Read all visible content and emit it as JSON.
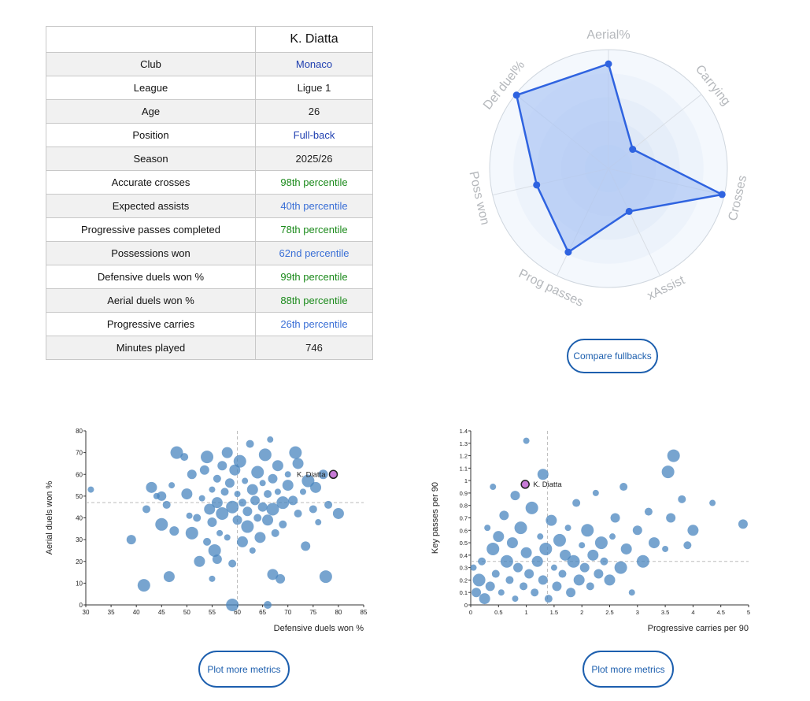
{
  "player": {
    "name": "K. Diatta"
  },
  "table_rows": [
    {
      "label": "Club",
      "value": "Monaco",
      "color": "#1f3fb0"
    },
    {
      "label": "League",
      "value": "Ligue 1",
      "color": "#222222"
    },
    {
      "label": "Age",
      "value": "26",
      "color": "#222222"
    },
    {
      "label": "Position",
      "value": "Full-back",
      "color": "#1f3fb0"
    },
    {
      "label": "Season",
      "value": "2025/26",
      "color": "#222222"
    },
    {
      "label": "Accurate crosses",
      "value": "98th percentile",
      "color": "#1b8a1b"
    },
    {
      "label": "Expected assists",
      "value": "40th percentile",
      "color": "#3a6fd6"
    },
    {
      "label": "Progressive passes completed",
      "value": "78th percentile",
      "color": "#1b8a1b"
    },
    {
      "label": "Possessions won",
      "value": "62nd percentile",
      "color": "#3a6fd6"
    },
    {
      "label": "Defensive duels won %",
      "value": "99th percentile",
      "color": "#1b8a1b"
    },
    {
      "label": "Aerial duels won %",
      "value": "88th percentile",
      "color": "#1b8a1b"
    },
    {
      "label": "Progressive carries",
      "value": "26th percentile",
      "color": "#3a6fd6"
    },
    {
      "label": "Minutes played",
      "value": "746",
      "color": "#222222"
    }
  ],
  "buttons": {
    "compare": "Compare fullbacks",
    "plot_more_1": "Plot more metrics",
    "plot_more_2": "Plot more metrics"
  },
  "chart_data": [
    {
      "type": "radar",
      "axes": [
        "Aerial%",
        "Carrying",
        "Crosses",
        "xAssist",
        "Prog passes",
        "Poss won",
        "Def duel%"
      ],
      "values": [
        88,
        26,
        98,
        40,
        78,
        62,
        99
      ],
      "range": [
        0,
        100
      ],
      "fill_color": "#a9c3f5",
      "line_color": "#2f63e0"
    },
    {
      "type": "scatter",
      "xlabel": "Defensive duels won %",
      "ylabel": "Aerial duels won %",
      "xlim": [
        30,
        85
      ],
      "ylim": [
        0,
        80
      ],
      "xticks": [
        30,
        35,
        40,
        45,
        50,
        55,
        60,
        65,
        70,
        75,
        80,
        85
      ],
      "yticks": [
        0,
        10,
        20,
        30,
        40,
        50,
        60,
        70,
        80
      ],
      "x_ref": 60,
      "y_ref": 47,
      "highlight": {
        "label": "K. Diatta",
        "x": 79,
        "y": 60
      },
      "point_color": "#4a86bf",
      "highlight_color": "#c77ad6",
      "points": [
        [
          31,
          53
        ],
        [
          39,
          30
        ],
        [
          41.5,
          9
        ],
        [
          42,
          44
        ],
        [
          43,
          54
        ],
        [
          44,
          50
        ],
        [
          45,
          50
        ],
        [
          45,
          37
        ],
        [
          46,
          46
        ],
        [
          46.5,
          13
        ],
        [
          47,
          55
        ],
        [
          47.5,
          34
        ],
        [
          48,
          70
        ],
        [
          49.5,
          68
        ],
        [
          50,
          51
        ],
        [
          50.5,
          41
        ],
        [
          51,
          60
        ],
        [
          51,
          33
        ],
        [
          52,
          40
        ],
        [
          52.5,
          20
        ],
        [
          53,
          49
        ],
        [
          53.5,
          62
        ],
        [
          54,
          68
        ],
        [
          54,
          29
        ],
        [
          54.5,
          44
        ],
        [
          55,
          53
        ],
        [
          55,
          38
        ],
        [
          55.5,
          25
        ],
        [
          56,
          58
        ],
        [
          56,
          47
        ],
        [
          56.5,
          33
        ],
        [
          57,
          64
        ],
        [
          57,
          42
        ],
        [
          57.5,
          52
        ],
        [
          58,
          70
        ],
        [
          58,
          31
        ],
        [
          58.5,
          56
        ],
        [
          59,
          45
        ],
        [
          59,
          19
        ],
        [
          59.5,
          62
        ],
        [
          60,
          51
        ],
        [
          60,
          39
        ],
        [
          60.5,
          66
        ],
        [
          61,
          47
        ],
        [
          61,
          29
        ],
        [
          61.5,
          57
        ],
        [
          62,
          43
        ],
        [
          62,
          36
        ],
        [
          62.5,
          74
        ],
        [
          63,
          53
        ],
        [
          63,
          25
        ],
        [
          63.5,
          48
        ],
        [
          64,
          61
        ],
        [
          64,
          40
        ],
        [
          64.5,
          31
        ],
        [
          65,
          56
        ],
        [
          65,
          45
        ],
        [
          65.5,
          69
        ],
        [
          66,
          51
        ],
        [
          66,
          39
        ],
        [
          66.5,
          76
        ],
        [
          67,
          58
        ],
        [
          67,
          44
        ],
        [
          67.5,
          33
        ],
        [
          68,
          64
        ],
        [
          68,
          52
        ],
        [
          68.5,
          12
        ],
        [
          69,
          47
        ],
        [
          69,
          37
        ],
        [
          70,
          55
        ],
        [
          70,
          60
        ],
        [
          71,
          48
        ],
        [
          71.5,
          70
        ],
        [
          72,
          42
        ],
        [
          72,
          65
        ],
        [
          73,
          52
        ],
        [
          73.5,
          27
        ],
        [
          74,
          57
        ],
        [
          75,
          44
        ],
        [
          75.5,
          54
        ],
        [
          76,
          38
        ],
        [
          77,
          60
        ],
        [
          77.5,
          13
        ],
        [
          78,
          46
        ],
        [
          80,
          42
        ],
        [
          55,
          12
        ],
        [
          56,
          21
        ],
        [
          59,
          0
        ],
        [
          66,
          0
        ],
        [
          67,
          14
        ]
      ]
    },
    {
      "type": "scatter",
      "xlabel": "Progressive carries per 90",
      "ylabel": "Key passes per 90",
      "xlim": [
        0,
        5
      ],
      "ylim": [
        0,
        1.4
      ],
      "xticks": [
        0.0,
        0.5,
        1.0,
        1.5,
        2.0,
        2.5,
        3.0,
        3.5,
        4.0,
        4.5,
        5.0
      ],
      "yticks": [
        0.0,
        0.1,
        0.2,
        0.3,
        0.4,
        0.5,
        0.6,
        0.7,
        0.8,
        0.9,
        1.0,
        1.1,
        1.2,
        1.3,
        1.4
      ],
      "x_ref": 1.38,
      "y_ref": 0.35,
      "highlight": {
        "label": "K. Diatta",
        "x": 0.98,
        "y": 0.97
      },
      "point_color": "#4a86bf",
      "highlight_color": "#c77ad6",
      "points": [
        [
          0.05,
          0.3
        ],
        [
          0.1,
          0.1
        ],
        [
          0.15,
          0.2
        ],
        [
          0.2,
          0.35
        ],
        [
          0.25,
          0.05
        ],
        [
          0.3,
          0.62
        ],
        [
          0.35,
          0.15
        ],
        [
          0.4,
          0.45
        ],
        [
          0.45,
          0.25
        ],
        [
          0.5,
          0.55
        ],
        [
          0.55,
          0.1
        ],
        [
          0.6,
          0.72
        ],
        [
          0.65,
          0.35
        ],
        [
          0.7,
          0.2
        ],
        [
          0.75,
          0.5
        ],
        [
          0.8,
          0.05
        ],
        [
          0.85,
          0.3
        ],
        [
          0.9,
          0.62
        ],
        [
          0.95,
          0.15
        ],
        [
          1.0,
          0.42
        ],
        [
          1.0,
          1.32
        ],
        [
          1.05,
          0.25
        ],
        [
          1.1,
          0.78
        ],
        [
          1.15,
          0.1
        ],
        [
          1.2,
          0.35
        ],
        [
          1.25,
          0.55
        ],
        [
          1.3,
          0.2
        ],
        [
          1.35,
          0.45
        ],
        [
          1.4,
          0.05
        ],
        [
          1.45,
          0.68
        ],
        [
          1.5,
          0.3
        ],
        [
          1.55,
          0.15
        ],
        [
          1.6,
          0.52
        ],
        [
          1.65,
          0.25
        ],
        [
          1.7,
          0.4
        ],
        [
          1.75,
          0.62
        ],
        [
          1.8,
          0.1
        ],
        [
          1.85,
          0.35
        ],
        [
          1.9,
          0.82
        ],
        [
          1.95,
          0.2
        ],
        [
          2.0,
          0.48
        ],
        [
          2.05,
          0.3
        ],
        [
          2.1,
          0.6
        ],
        [
          2.15,
          0.15
        ],
        [
          2.2,
          0.4
        ],
        [
          2.25,
          0.9
        ],
        [
          2.3,
          0.25
        ],
        [
          2.35,
          0.5
        ],
        [
          2.4,
          0.35
        ],
        [
          2.5,
          0.2
        ],
        [
          2.55,
          0.55
        ],
        [
          2.6,
          0.7
        ],
        [
          2.7,
          0.3
        ],
        [
          2.75,
          0.95
        ],
        [
          2.8,
          0.45
        ],
        [
          2.9,
          0.1
        ],
        [
          3.0,
          0.6
        ],
        [
          3.1,
          0.35
        ],
        [
          3.2,
          0.75
        ],
        [
          3.3,
          0.5
        ],
        [
          3.5,
          0.45
        ],
        [
          3.6,
          0.7
        ],
        [
          3.65,
          1.2
        ],
        [
          3.8,
          0.85
        ],
        [
          4.0,
          0.6
        ],
        [
          4.35,
          0.82
        ],
        [
          4.9,
          0.65
        ],
        [
          3.55,
          1.07
        ],
        [
          3.9,
          0.48
        ],
        [
          1.3,
          1.05
        ],
        [
          0.4,
          0.95
        ],
        [
          0.8,
          0.88
        ]
      ]
    }
  ]
}
